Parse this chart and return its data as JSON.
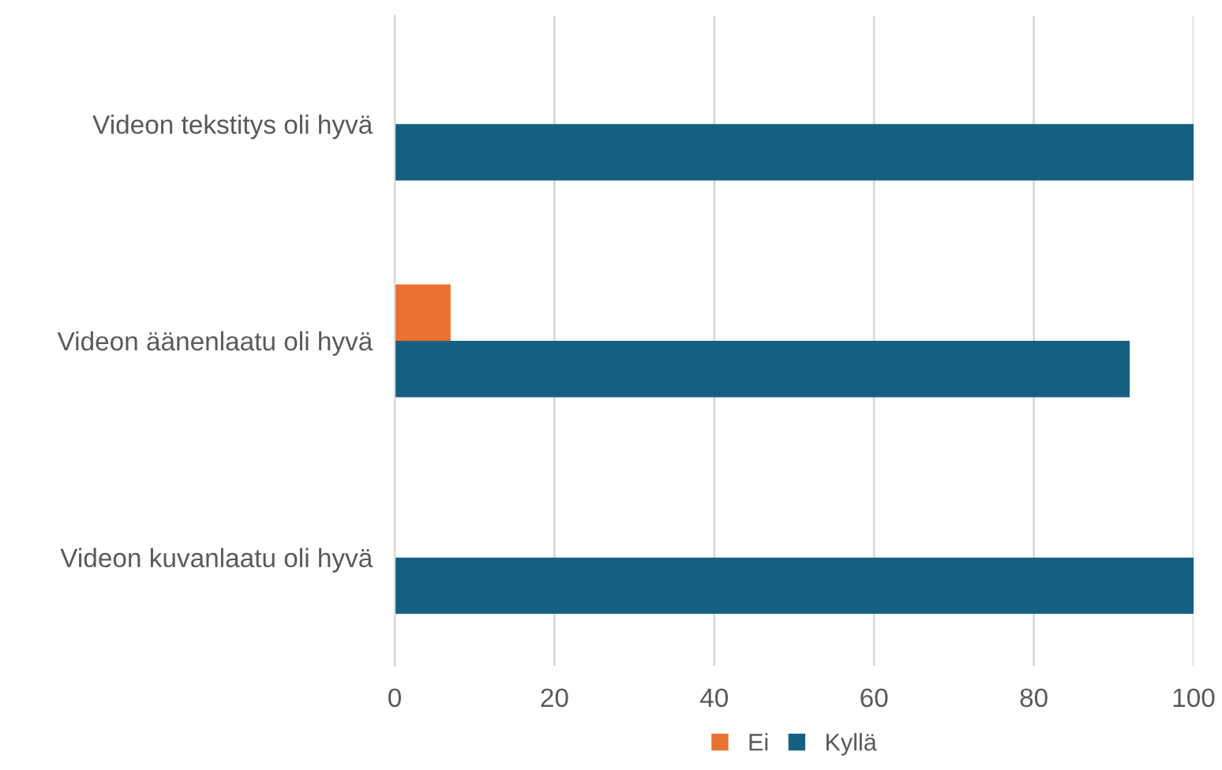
{
  "chart_data": {
    "type": "bar",
    "orientation": "horizontal",
    "categories": [
      "Videon tekstitys oli hyvä",
      "Videon äänenlaatu oli hyvä",
      "Videon kuvanlaatu oli hyvä"
    ],
    "series": [
      {
        "name": "Ei",
        "color": "#e97132",
        "values": [
          null,
          7,
          null
        ]
      },
      {
        "name": "Kyllä",
        "color": "#156082",
        "values": [
          100,
          92,
          100
        ]
      }
    ],
    "xlim": [
      0,
      100
    ],
    "xticks": [
      0,
      20,
      40,
      60,
      80,
      100
    ],
    "grid": "x",
    "legend": "bottom"
  }
}
